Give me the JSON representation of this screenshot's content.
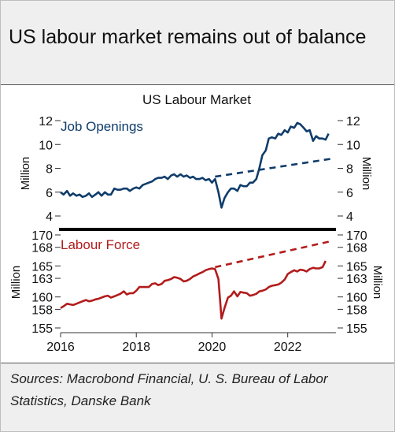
{
  "headline": "US labour market remains out of balance",
  "source_note": "Sources:  Macrobond Financial, U. S. Bureau of Labor Statistics, Danske Bank",
  "chart_data": [
    {
      "type": "line",
      "title": "US Labour Market",
      "panel_label": "Job Openings",
      "ylabel_left": "Million",
      "ylabel_right": "Million",
      "ylim": [
        4,
        12
      ],
      "yticks": [
        "4",
        "6",
        "8",
        "10",
        "12"
      ],
      "xlim": [
        2016,
        2023.15
      ],
      "color": "#0f3c6b",
      "series": [
        {
          "values": [
            [
              2016.0,
              6.0
            ],
            [
              2016.08,
              5.8
            ],
            [
              2016.17,
              6.1
            ],
            [
              2016.25,
              5.7
            ],
            [
              2016.33,
              5.9
            ],
            [
              2016.42,
              5.7
            ],
            [
              2016.5,
              5.8
            ],
            [
              2016.58,
              5.6
            ],
            [
              2016.67,
              5.7
            ],
            [
              2016.75,
              5.9
            ],
            [
              2016.83,
              5.6
            ],
            [
              2016.92,
              5.8
            ],
            [
              2017.0,
              6.0
            ],
            [
              2017.08,
              5.7
            ],
            [
              2017.17,
              6.0
            ],
            [
              2017.25,
              5.8
            ],
            [
              2017.33,
              5.8
            ],
            [
              2017.42,
              6.3
            ],
            [
              2017.5,
              6.2
            ],
            [
              2017.58,
              6.2
            ],
            [
              2017.67,
              6.3
            ],
            [
              2017.75,
              6.3
            ],
            [
              2017.83,
              6.1
            ],
            [
              2017.92,
              6.3
            ],
            [
              2018.0,
              6.4
            ],
            [
              2018.08,
              6.3
            ],
            [
              2018.17,
              6.6
            ],
            [
              2018.25,
              6.7
            ],
            [
              2018.33,
              6.8
            ],
            [
              2018.42,
              6.9
            ],
            [
              2018.5,
              7.1
            ],
            [
              2018.58,
              7.2
            ],
            [
              2018.67,
              7.2
            ],
            [
              2018.75,
              7.3
            ],
            [
              2018.83,
              7.1
            ],
            [
              2018.92,
              7.4
            ],
            [
              2019.0,
              7.5
            ],
            [
              2019.08,
              7.3
            ],
            [
              2019.17,
              7.5
            ],
            [
              2019.25,
              7.3
            ],
            [
              2019.33,
              7.4
            ],
            [
              2019.42,
              7.2
            ],
            [
              2019.5,
              7.3
            ],
            [
              2019.58,
              7.1
            ],
            [
              2019.67,
              7.1
            ],
            [
              2019.75,
              7.2
            ],
            [
              2019.83,
              7.0
            ],
            [
              2019.92,
              7.1
            ],
            [
              2020.0,
              6.8
            ],
            [
              2020.08,
              7.1
            ],
            [
              2020.17,
              6.0
            ],
            [
              2020.25,
              4.7
            ],
            [
              2020.33,
              5.5
            ],
            [
              2020.42,
              6.0
            ],
            [
              2020.5,
              6.3
            ],
            [
              2020.58,
              6.3
            ],
            [
              2020.67,
              6.1
            ],
            [
              2020.75,
              6.6
            ],
            [
              2020.83,
              6.5
            ],
            [
              2020.92,
              6.5
            ],
            [
              2021.0,
              6.8
            ],
            [
              2021.08,
              6.8
            ],
            [
              2021.17,
              7.1
            ],
            [
              2021.25,
              8.0
            ],
            [
              2021.33,
              9.1
            ],
            [
              2021.42,
              9.5
            ],
            [
              2021.5,
              10.5
            ],
            [
              2021.58,
              10.6
            ],
            [
              2021.67,
              10.5
            ],
            [
              2021.75,
              10.9
            ],
            [
              2021.83,
              10.8
            ],
            [
              2021.92,
              11.2
            ],
            [
              2022.0,
              11.0
            ],
            [
              2022.08,
              11.5
            ],
            [
              2022.17,
              11.4
            ],
            [
              2022.25,
              11.8
            ],
            [
              2022.33,
              11.7
            ],
            [
              2022.42,
              11.4
            ],
            [
              2022.5,
              11.1
            ],
            [
              2022.58,
              11.2
            ],
            [
              2022.67,
              10.3
            ],
            [
              2022.75,
              10.7
            ],
            [
              2022.83,
              10.5
            ],
            [
              2022.92,
              10.5
            ],
            [
              2023.0,
              10.4
            ],
            [
              2023.08,
              10.9
            ]
          ]
        }
      ],
      "trend": {
        "style": "dashed",
        "x": [
          2020.08,
          2023.15
        ],
        "y": [
          7.3,
          8.8
        ]
      }
    },
    {
      "type": "line",
      "panel_label": "Labour Force",
      "ylabel_left": "Million",
      "ylabel_right": "Million",
      "ylim": [
        155,
        170
      ],
      "yticks": [
        "155",
        "158",
        "160",
        "163",
        "165",
        "168",
        "170"
      ],
      "xlim": [
        2016,
        2023.15
      ],
      "xticks": [
        "2016",
        "2018",
        "2020",
        "2022"
      ],
      "color": "#b21c1c",
      "series": [
        {
          "values": [
            [
              2016.0,
              158.2
            ],
            [
              2016.08,
              158.5
            ],
            [
              2016.17,
              158.9
            ],
            [
              2016.25,
              158.8
            ],
            [
              2016.33,
              158.7
            ],
            [
              2016.42,
              158.9
            ],
            [
              2016.5,
              159.1
            ],
            [
              2016.58,
              159.3
            ],
            [
              2016.67,
              159.5
            ],
            [
              2016.75,
              159.3
            ],
            [
              2016.83,
              159.4
            ],
            [
              2016.92,
              159.6
            ],
            [
              2017.0,
              159.7
            ],
            [
              2017.08,
              159.9
            ],
            [
              2017.17,
              160.1
            ],
            [
              2017.25,
              160.2
            ],
            [
              2017.33,
              159.9
            ],
            [
              2017.42,
              160.1
            ],
            [
              2017.5,
              160.3
            ],
            [
              2017.58,
              160.5
            ],
            [
              2017.67,
              160.9
            ],
            [
              2017.75,
              160.4
            ],
            [
              2017.83,
              160.6
            ],
            [
              2017.92,
              160.6
            ],
            [
              2018.0,
              161.0
            ],
            [
              2018.08,
              161.6
            ],
            [
              2018.17,
              161.6
            ],
            [
              2018.25,
              161.6
            ],
            [
              2018.33,
              161.6
            ],
            [
              2018.42,
              162.1
            ],
            [
              2018.5,
              162.2
            ],
            [
              2018.58,
              161.9
            ],
            [
              2018.67,
              162.1
            ],
            [
              2018.75,
              162.6
            ],
            [
              2018.83,
              162.7
            ],
            [
              2018.92,
              162.9
            ],
            [
              2019.0,
              163.2
            ],
            [
              2019.08,
              163.1
            ],
            [
              2019.17,
              162.9
            ],
            [
              2019.25,
              162.5
            ],
            [
              2019.33,
              162.6
            ],
            [
              2019.42,
              162.9
            ],
            [
              2019.5,
              163.3
            ],
            [
              2019.58,
              163.5
            ],
            [
              2019.67,
              163.8
            ],
            [
              2019.75,
              164.0
            ],
            [
              2019.83,
              164.3
            ],
            [
              2019.92,
              164.5
            ],
            [
              2020.0,
              164.6
            ],
            [
              2020.08,
              164.5
            ],
            [
              2020.17,
              162.9
            ],
            [
              2020.25,
              156.5
            ],
            [
              2020.33,
              158.2
            ],
            [
              2020.42,
              159.9
            ],
            [
              2020.5,
              160.2
            ],
            [
              2020.58,
              160.9
            ],
            [
              2020.67,
              160.1
            ],
            [
              2020.75,
              160.8
            ],
            [
              2020.83,
              160.7
            ],
            [
              2020.92,
              160.6
            ],
            [
              2021.0,
              160.2
            ],
            [
              2021.08,
              160.3
            ],
            [
              2021.17,
              160.5
            ],
            [
              2021.25,
              160.9
            ],
            [
              2021.33,
              161.0
            ],
            [
              2021.42,
              161.2
            ],
            [
              2021.5,
              161.6
            ],
            [
              2021.58,
              161.8
            ],
            [
              2021.67,
              161.9
            ],
            [
              2021.75,
              162.0
            ],
            [
              2021.83,
              162.3
            ],
            [
              2021.92,
              162.8
            ],
            [
              2022.0,
              163.7
            ],
            [
              2022.08,
              164.0
            ],
            [
              2022.17,
              164.3
            ],
            [
              2022.25,
              164.1
            ],
            [
              2022.33,
              164.4
            ],
            [
              2022.42,
              164.3
            ],
            [
              2022.5,
              164.1
            ],
            [
              2022.58,
              164.5
            ],
            [
              2022.67,
              164.7
            ],
            [
              2022.75,
              164.6
            ],
            [
              2022.83,
              164.6
            ],
            [
              2022.92,
              164.8
            ],
            [
              2023.0,
              165.8
            ]
          ]
        }
      ],
      "trend": {
        "style": "dashed",
        "x": [
          2020.08,
          2023.15
        ],
        "y": [
          164.8,
          169.0
        ]
      }
    }
  ]
}
